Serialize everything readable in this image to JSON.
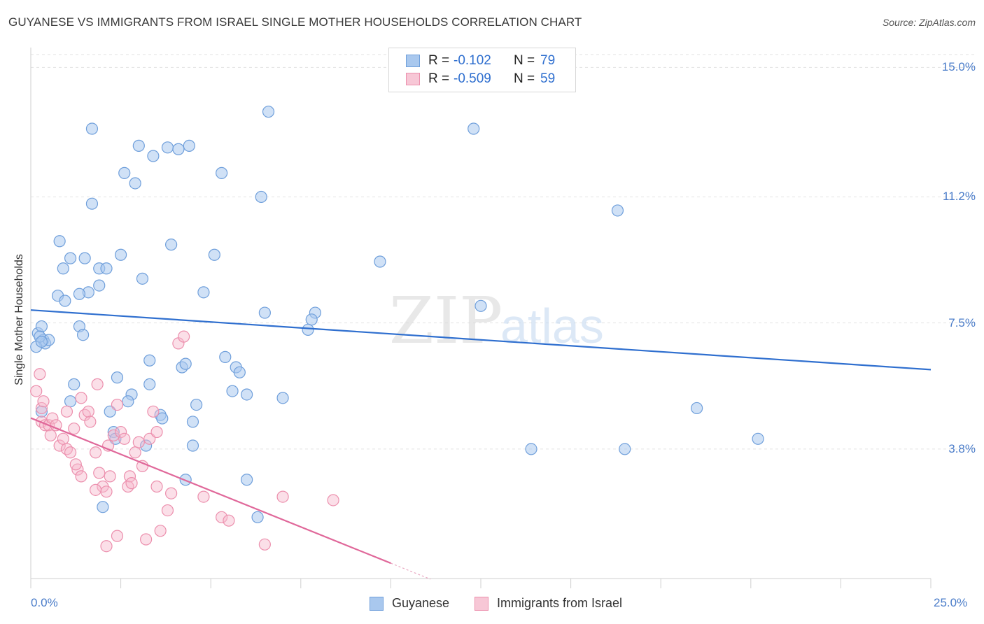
{
  "header": {
    "title": "GUYANESE VS IMMIGRANTS FROM ISRAEL SINGLE MOTHER HOUSEHOLDS CORRELATION CHART",
    "source": "Source: ZipAtlas.com"
  },
  "watermark": {
    "part1": "ZIP",
    "part2": "atlas"
  },
  "legend_top": {
    "rows": [
      {
        "r_label": "R =",
        "r_value": "-0.102",
        "n_label": "N =",
        "n_value": "79"
      },
      {
        "r_label": "R =",
        "r_value": "-0.509",
        "n_label": "N =",
        "n_value": "59"
      }
    ]
  },
  "legend_bottom": {
    "items": [
      {
        "label": "Guyanese"
      },
      {
        "label": "Immigrants from Israel"
      }
    ]
  },
  "colors": {
    "blue_fill": "#a9c8ee",
    "blue_stroke": "#6f9fdb",
    "blue_line": "#2f6fcf",
    "pink_fill": "#f7b9cc",
    "pink_stroke": "#ec8fad",
    "pink_line": "#e0689a",
    "tick_text": "#4a7cc9"
  },
  "chart_data": {
    "type": "scatter",
    "title": "GUYANESE VS IMMIGRANTS FROM ISRAEL SINGLE MOTHER HOUSEHOLDS CORRELATION CHART",
    "xlabel": "",
    "ylabel": "Single Mother Households",
    "xlim": [
      0,
      25
    ],
    "ylim": [
      0,
      15.5
    ],
    "x_tick_labels": [
      "0.0%",
      "25.0%"
    ],
    "y_ticks": [
      3.8,
      7.5,
      11.2,
      15.0
    ],
    "y_tick_labels": [
      "3.8%",
      "7.5%",
      "11.2%",
      "15.0%"
    ],
    "grid": "horizontal dashed",
    "legend_position": "top-center",
    "series": [
      {
        "name": "Guyanese",
        "color": "#a9c8ee",
        "R": -0.102,
        "N": 79,
        "trend": {
          "x": [
            0,
            25
          ],
          "y": [
            7.88,
            6.13
          ]
        },
        "points": [
          [
            0.2,
            7.2
          ],
          [
            0.3,
            7.4
          ],
          [
            0.35,
            7.0
          ],
          [
            0.4,
            6.9
          ],
          [
            0.5,
            7.0
          ],
          [
            0.15,
            6.8
          ],
          [
            0.25,
            7.1
          ],
          [
            0.3,
            6.95
          ],
          [
            1.7,
            13.2
          ],
          [
            3.0,
            12.7
          ],
          [
            3.8,
            12.65
          ],
          [
            4.1,
            12.6
          ],
          [
            4.4,
            12.7
          ],
          [
            3.4,
            12.4
          ],
          [
            2.6,
            11.9
          ],
          [
            2.9,
            11.6
          ],
          [
            1.7,
            11.0
          ],
          [
            5.3,
            11.9
          ],
          [
            6.4,
            11.2
          ],
          [
            6.6,
            13.7
          ],
          [
            12.3,
            13.2
          ],
          [
            16.3,
            10.8
          ],
          [
            0.8,
            9.9
          ],
          [
            1.1,
            9.4
          ],
          [
            0.9,
            9.1
          ],
          [
            1.5,
            9.4
          ],
          [
            1.9,
            9.1
          ],
          [
            2.1,
            9.1
          ],
          [
            2.5,
            9.5
          ],
          [
            3.1,
            8.8
          ],
          [
            3.9,
            9.8
          ],
          [
            5.1,
            9.5
          ],
          [
            1.9,
            8.6
          ],
          [
            1.6,
            8.4
          ],
          [
            1.35,
            8.35
          ],
          [
            0.75,
            8.3
          ],
          [
            0.95,
            8.15
          ],
          [
            4.8,
            8.4
          ],
          [
            9.7,
            9.3
          ],
          [
            12.5,
            8.0
          ],
          [
            6.5,
            7.8
          ],
          [
            7.9,
            7.8
          ],
          [
            7.8,
            7.6
          ],
          [
            7.7,
            7.3
          ],
          [
            1.35,
            7.4
          ],
          [
            1.45,
            7.15
          ],
          [
            3.3,
            6.4
          ],
          [
            4.2,
            6.2
          ],
          [
            4.3,
            6.3
          ],
          [
            5.4,
            6.5
          ],
          [
            5.7,
            6.2
          ],
          [
            5.8,
            6.05
          ],
          [
            2.4,
            5.9
          ],
          [
            1.2,
            5.7
          ],
          [
            3.3,
            5.7
          ],
          [
            2.8,
            5.4
          ],
          [
            2.7,
            5.2
          ],
          [
            5.6,
            5.5
          ],
          [
            6.0,
            5.4
          ],
          [
            7.0,
            5.3
          ],
          [
            4.6,
            5.1
          ],
          [
            1.1,
            5.2
          ],
          [
            2.2,
            4.9
          ],
          [
            3.6,
            4.8
          ],
          [
            3.65,
            4.7
          ],
          [
            4.5,
            4.6
          ],
          [
            2.3,
            4.3
          ],
          [
            2.35,
            4.1
          ],
          [
            3.2,
            3.9
          ],
          [
            4.5,
            3.9
          ],
          [
            13.9,
            3.8
          ],
          [
            16.5,
            3.8
          ],
          [
            18.5,
            5.0
          ],
          [
            20.2,
            4.1
          ],
          [
            4.3,
            2.9
          ],
          [
            6.0,
            2.9
          ],
          [
            2.0,
            2.1
          ],
          [
            6.3,
            1.8
          ],
          [
            0.3,
            4.9
          ]
        ]
      },
      {
        "name": "Immigrants from Israel",
        "color": "#f7b9cc",
        "R": -0.509,
        "N": 59,
        "trend": {
          "x": [
            0,
            10
          ],
          "y": [
            4.71,
            0.45
          ]
        },
        "trend_dashed": {
          "x": [
            10,
            11.1
          ],
          "y": [
            0.45,
            -0.02
          ]
        },
        "points": [
          [
            0.15,
            5.5
          ],
          [
            0.25,
            6.0
          ],
          [
            0.3,
            5.0
          ],
          [
            0.35,
            5.2
          ],
          [
            0.3,
            4.6
          ],
          [
            0.4,
            4.5
          ],
          [
            0.5,
            4.5
          ],
          [
            0.6,
            4.7
          ],
          [
            0.55,
            4.2
          ],
          [
            0.7,
            4.5
          ],
          [
            0.8,
            3.9
          ],
          [
            0.9,
            4.1
          ],
          [
            1.0,
            3.8
          ],
          [
            1.1,
            3.7
          ],
          [
            1.2,
            4.4
          ],
          [
            1.0,
            4.9
          ],
          [
            1.4,
            5.3
          ],
          [
            1.3,
            3.2
          ],
          [
            1.25,
            3.35
          ],
          [
            1.4,
            3.0
          ],
          [
            1.5,
            4.8
          ],
          [
            1.6,
            4.9
          ],
          [
            1.65,
            4.6
          ],
          [
            1.8,
            3.7
          ],
          [
            1.85,
            5.7
          ],
          [
            1.9,
            3.1
          ],
          [
            2.0,
            2.7
          ],
          [
            1.8,
            2.6
          ],
          [
            2.1,
            2.55
          ],
          [
            2.15,
            3.9
          ],
          [
            2.2,
            3.0
          ],
          [
            2.3,
            4.2
          ],
          [
            2.4,
            5.1
          ],
          [
            2.5,
            4.3
          ],
          [
            2.6,
            4.1
          ],
          [
            2.7,
            2.7
          ],
          [
            2.75,
            3.0
          ],
          [
            2.8,
            2.8
          ],
          [
            2.9,
            3.7
          ],
          [
            3.0,
            4.0
          ],
          [
            3.1,
            3.3
          ],
          [
            3.3,
            4.1
          ],
          [
            3.4,
            4.9
          ],
          [
            3.5,
            4.3
          ],
          [
            3.5,
            2.7
          ],
          [
            3.6,
            1.4
          ],
          [
            3.8,
            2.0
          ],
          [
            3.9,
            2.5
          ],
          [
            4.1,
            6.9
          ],
          [
            4.25,
            7.1
          ],
          [
            4.8,
            2.4
          ],
          [
            5.3,
            1.8
          ],
          [
            5.5,
            1.7
          ],
          [
            6.5,
            1.0
          ],
          [
            7.0,
            2.4
          ],
          [
            8.4,
            2.3
          ],
          [
            2.1,
            0.95
          ],
          [
            2.4,
            1.25
          ],
          [
            3.2,
            1.15
          ]
        ]
      }
    ]
  }
}
